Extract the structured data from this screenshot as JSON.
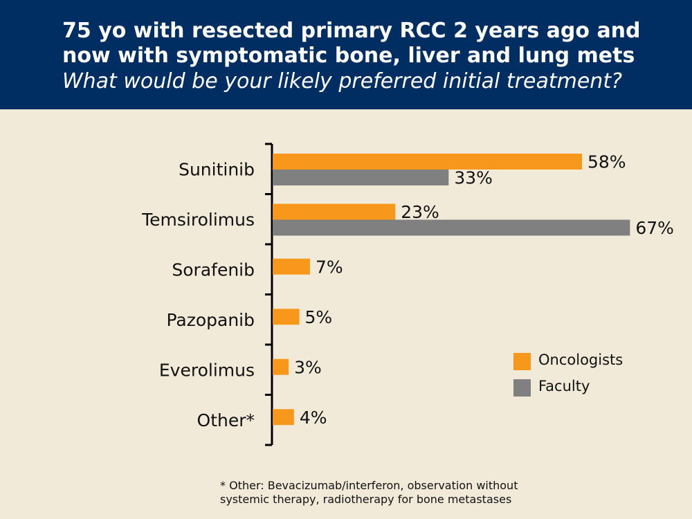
{
  "header": {
    "title_line1": "75 yo with resected primary RCC 2 years ago and",
    "title_line2": "now with symptomatic bone, liver and lung mets",
    "subtitle": "What would be your likely preferred initial treatment?"
  },
  "colors": {
    "header_bg": "#002D62",
    "background": "#F1EAD9",
    "oncologists": "#F7981D",
    "faculty": "#808080"
  },
  "chart_data": {
    "type": "bar",
    "orientation": "horizontal",
    "categories": [
      "Sunitinib",
      "Temsirolimus",
      "Sorafenib",
      "Pazopanib",
      "Everolimus",
      "Other*"
    ],
    "series": [
      {
        "name": "Oncologists",
        "values": [
          58,
          23,
          7,
          5,
          3,
          4
        ],
        "labels": [
          "58%",
          "23%",
          "7%",
          "5%",
          "3%",
          "4%"
        ]
      },
      {
        "name": "Faculty",
        "values": [
          33,
          67,
          null,
          null,
          null,
          null
        ],
        "labels": [
          "33%",
          "67%",
          "",
          "",
          "",
          ""
        ]
      }
    ],
    "unit": "%",
    "xlim": [
      0,
      67
    ],
    "legend_position": "right",
    "grid": false
  },
  "footnote": {
    "line1": "* Other: Bevacizumab/interferon, observation without",
    "line2": "systemic therapy, radiotherapy for bone metastases"
  }
}
